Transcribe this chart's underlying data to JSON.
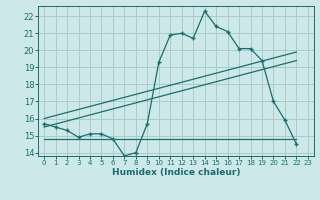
{
  "xlabel": "Humidex (Indice chaleur)",
  "bg_color": "#cce8e8",
  "grid_color": "#aacaca",
  "line_color": "#1a6e6e",
  "xlim": [
    -0.5,
    23.5
  ],
  "ylim": [
    13.8,
    22.6
  ],
  "xticks": [
    0,
    1,
    2,
    3,
    4,
    5,
    6,
    7,
    8,
    9,
    10,
    11,
    12,
    13,
    14,
    15,
    16,
    17,
    18,
    19,
    20,
    21,
    22,
    23
  ],
  "yticks": [
    14,
    15,
    16,
    17,
    18,
    19,
    20,
    21,
    22
  ],
  "line1_x": [
    0,
    1,
    2,
    3,
    4,
    5,
    6,
    7,
    8,
    9,
    10,
    11,
    12,
    13,
    14,
    15,
    16,
    17,
    18,
    19,
    20,
    21,
    22
  ],
  "line1_y": [
    15.7,
    15.5,
    15.3,
    14.9,
    15.1,
    15.1,
    14.8,
    13.8,
    14.0,
    15.7,
    19.3,
    20.9,
    21.0,
    20.7,
    22.3,
    21.4,
    21.1,
    20.1,
    20.1,
    19.4,
    17.0,
    15.9,
    14.5
  ],
  "line2_x": [
    0,
    22
  ],
  "line2_y": [
    15.5,
    19.4
  ],
  "line3_x": [
    0,
    22
  ],
  "line3_y": [
    16.0,
    19.9
  ],
  "line4_x": [
    0,
    22
  ],
  "line4_y": [
    14.8,
    14.8
  ]
}
